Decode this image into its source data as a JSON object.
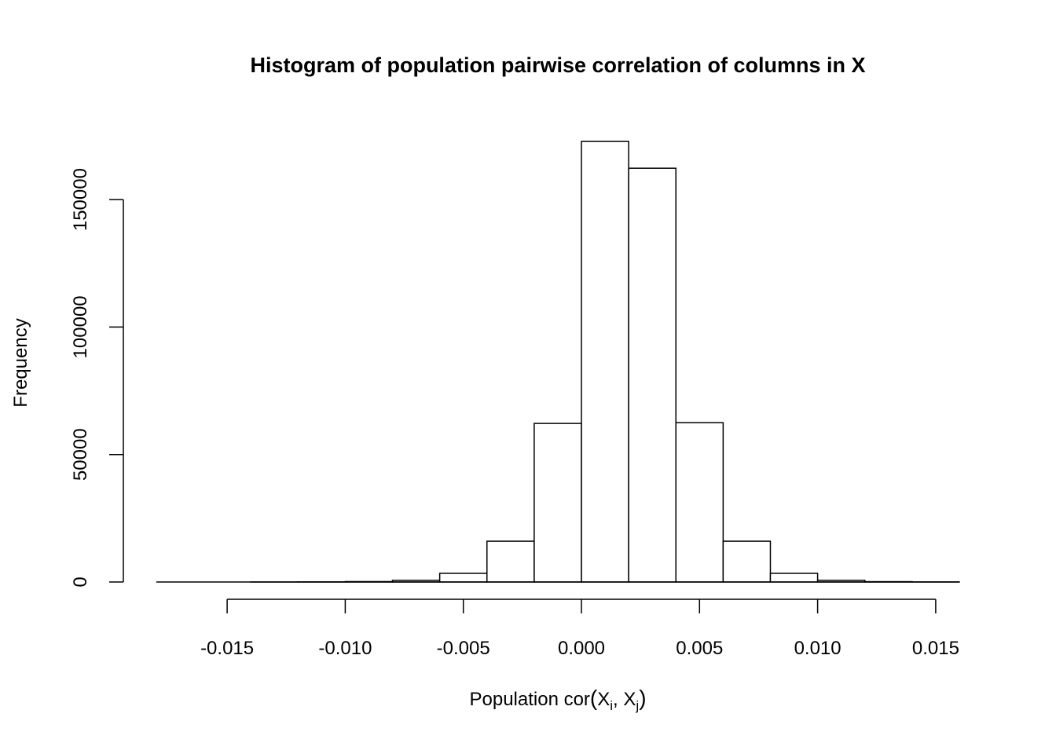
{
  "chart_data": {
    "type": "bar",
    "title": "Histogram of population pairwise correlation of columns in X",
    "xlabel": "Population cor",
    "xlabel_math": {
      "open": "(",
      "a": "X",
      "a_sub": "i",
      "sep": ", ",
      "b": "X",
      "b_sub": "j",
      "close": ")"
    },
    "ylabel": "Frequency",
    "bin_edges": [
      -0.018,
      -0.016,
      -0.014,
      -0.012,
      -0.01,
      -0.008,
      -0.006,
      -0.004,
      -0.002,
      0.0,
      0.002,
      0.004,
      0.006,
      0.008,
      0.01,
      0.012,
      0.014,
      0.016
    ],
    "values": [
      0,
      0,
      2,
      40,
      160,
      650,
      3400,
      16000,
      62200,
      172800,
      162300,
      62500,
      16000,
      3400,
      650,
      130,
      20
    ],
    "xlim": [
      -0.018,
      0.016
    ],
    "ylim": [
      0,
      172800
    ],
    "xticks": [
      -0.015,
      -0.01,
      -0.005,
      0.0,
      0.005,
      0.01,
      0.015
    ],
    "xtick_labels": [
      "-0.015",
      "-0.010",
      "-0.005",
      "0.000",
      "0.005",
      "0.010",
      "0.015"
    ],
    "yticks": [
      0,
      50000,
      100000,
      150000
    ],
    "ytick_labels": [
      "0",
      "50000",
      "100000",
      "150000"
    ],
    "grid": false,
    "bar_fill": "#ffffff",
    "bar_stroke": "#000000"
  }
}
